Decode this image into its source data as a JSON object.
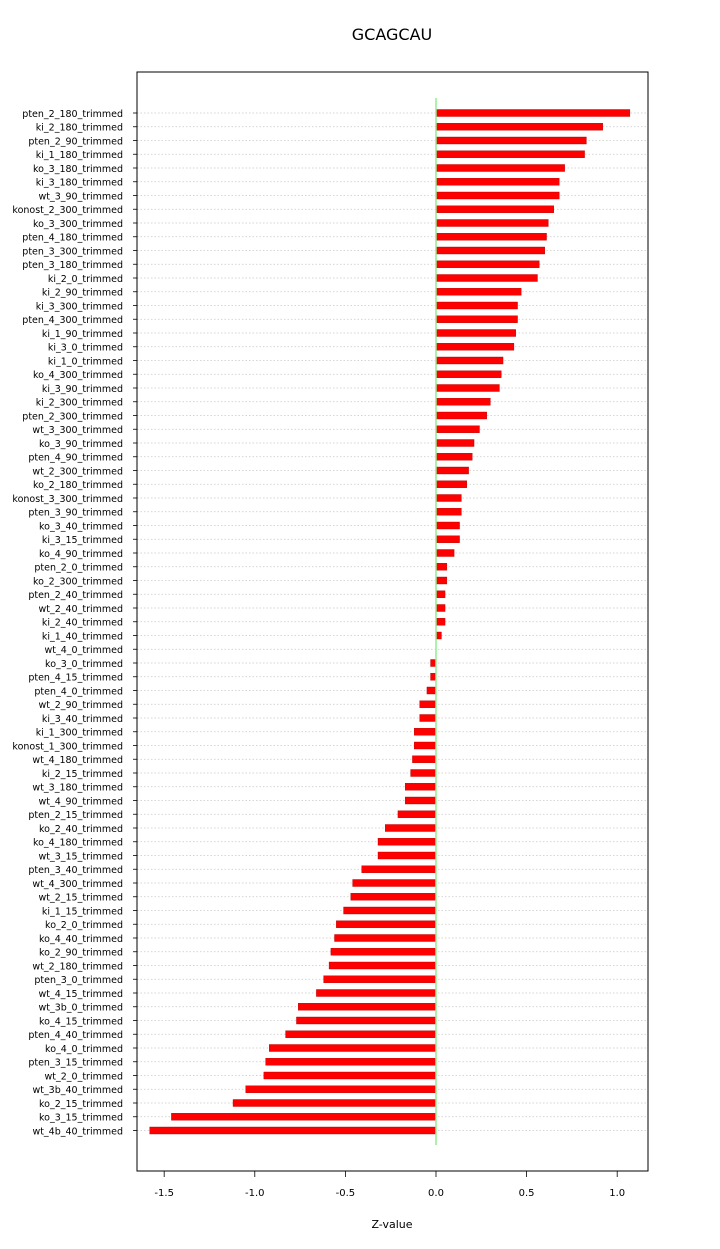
{
  "chart_data": {
    "type": "bar",
    "orientation": "horizontal",
    "title": "GCAGCAU",
    "xlabel": "Z-value",
    "ylabel": "",
    "xlim": [
      -1.65,
      1.17
    ],
    "x_ticks": [
      -1.5,
      -1.0,
      -0.5,
      0.0,
      0.5,
      1.0
    ],
    "x_tick_labels": [
      "-1.5",
      "-1.0",
      "-0.5",
      "0.0",
      "0.5",
      "1.0"
    ],
    "reference_line": 0.0,
    "grid": "horizontal dotted",
    "bar_color": "#ff0000",
    "reference_line_color": "#90ee90",
    "categories": [
      "pten_2_180_trimmed",
      "ki_2_180_trimmed",
      "pten_2_90_trimmed",
      "ki_1_180_trimmed",
      "ko_3_180_trimmed",
      "ki_3_180_trimmed",
      "wt_3_90_trimmed",
      "konost_2_300_trimmed",
      "ko_3_300_trimmed",
      "pten_4_180_trimmed",
      "pten_3_300_trimmed",
      "pten_3_180_trimmed",
      "ki_2_0_trimmed",
      "ki_2_90_trimmed",
      "ki_3_300_trimmed",
      "pten_4_300_trimmed",
      "ki_1_90_trimmed",
      "ki_3_0_trimmed",
      "ki_1_0_trimmed",
      "ko_4_300_trimmed",
      "ki_3_90_trimmed",
      "ki_2_300_trimmed",
      "pten_2_300_trimmed",
      "wt_3_300_trimmed",
      "ko_3_90_trimmed",
      "pten_4_90_trimmed",
      "wt_2_300_trimmed",
      "ko_2_180_trimmed",
      "konost_3_300_trimmed",
      "pten_3_90_trimmed",
      "ko_3_40_trimmed",
      "ki_3_15_trimmed",
      "ko_4_90_trimmed",
      "pten_2_0_trimmed",
      "ko_2_300_trimmed",
      "pten_2_40_trimmed",
      "wt_2_40_trimmed",
      "ki_2_40_trimmed",
      "ki_1_40_trimmed",
      "wt_4_0_trimmed",
      "ko_3_0_trimmed",
      "pten_4_15_trimmed",
      "pten_4_0_trimmed",
      "wt_2_90_trimmed",
      "ki_3_40_trimmed",
      "ki_1_300_trimmed",
      "konost_1_300_trimmed",
      "wt_4_180_trimmed",
      "ki_2_15_trimmed",
      "wt_3_180_trimmed",
      "wt_4_90_trimmed",
      "pten_2_15_trimmed",
      "ko_2_40_trimmed",
      "ko_4_180_trimmed",
      "wt_3_15_trimmed",
      "pten_3_40_trimmed",
      "wt_4_300_trimmed",
      "wt_2_15_trimmed",
      "ki_1_15_trimmed",
      "ko_2_0_trimmed",
      "ko_4_40_trimmed",
      "ko_2_90_trimmed",
      "wt_2_180_trimmed",
      "pten_3_0_trimmed",
      "wt_4_15_trimmed",
      "wt_3b_0_trimmed",
      "ko_4_15_trimmed",
      "pten_4_40_trimmed",
      "ko_4_0_trimmed",
      "pten_3_15_trimmed",
      "wt_2_0_trimmed",
      "wt_3b_40_trimmed",
      "ko_2_15_trimmed",
      "ko_3_15_trimmed",
      "wt_4b_40_trimmed"
    ],
    "values": [
      1.07,
      0.92,
      0.83,
      0.82,
      0.71,
      0.68,
      0.68,
      0.65,
      0.62,
      0.61,
      0.6,
      0.57,
      0.56,
      0.47,
      0.45,
      0.45,
      0.44,
      0.43,
      0.37,
      0.36,
      0.35,
      0.3,
      0.28,
      0.24,
      0.21,
      0.2,
      0.18,
      0.17,
      0.14,
      0.14,
      0.13,
      0.13,
      0.1,
      0.06,
      0.06,
      0.05,
      0.05,
      0.05,
      0.03,
      0.0,
      -0.03,
      -0.03,
      -0.05,
      -0.09,
      -0.09,
      -0.12,
      -0.12,
      -0.13,
      -0.14,
      -0.17,
      -0.17,
      -0.21,
      -0.28,
      -0.32,
      -0.32,
      -0.41,
      -0.46,
      -0.47,
      -0.51,
      -0.55,
      -0.56,
      -0.58,
      -0.59,
      -0.62,
      -0.66,
      -0.76,
      -0.77,
      -0.83,
      -0.92,
      -0.94,
      -0.95,
      -1.05,
      -1.12,
      -1.46,
      -1.58
    ]
  }
}
